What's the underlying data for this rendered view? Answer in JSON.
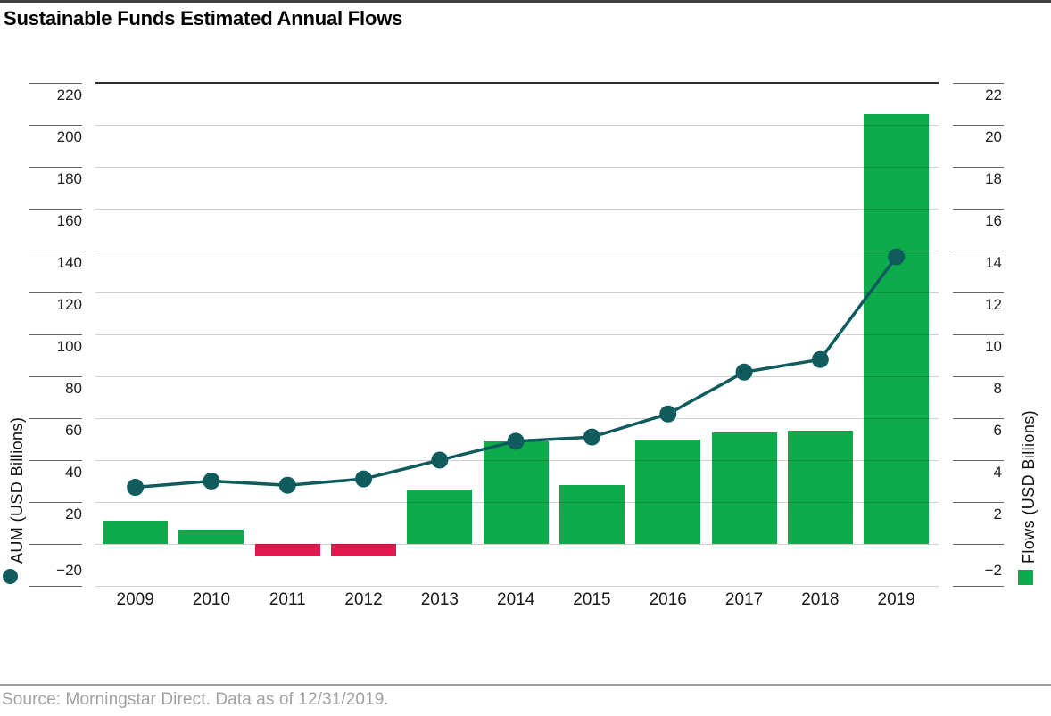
{
  "page": {
    "title": "Sustainable Funds Estimated Annual Flows",
    "source": "Source: Morningstar Direct. Data as of 12/31/2019."
  },
  "chart_data": {
    "type": "bar",
    "title": "Sustainable Funds Estimated Annual Flows",
    "categories": [
      "2009",
      "2010",
      "2011",
      "2012",
      "2013",
      "2014",
      "2015",
      "2016",
      "2017",
      "2018",
      "2019"
    ],
    "series": [
      {
        "name": "Flows (USD Billions)",
        "kind": "bar",
        "axis": "right",
        "values": [
          1.1,
          0.7,
          -0.6,
          -0.6,
          2.6,
          4.9,
          2.8,
          5.0,
          5.3,
          5.4,
          20.5
        ]
      },
      {
        "name": "AUM (USD Billions)",
        "kind": "line",
        "axis": "left",
        "values": [
          27,
          30,
          28,
          31,
          40,
          49,
          51,
          62,
          82,
          88,
          137
        ]
      }
    ],
    "left_axis": {
      "label": "AUM (USD Billions)",
      "range": [
        -20,
        220
      ],
      "tick_step": 20,
      "tick_labels": [
        "220",
        "200",
        "180",
        "160",
        "140",
        "120",
        "100",
        "80",
        "60",
        "40",
        "20",
        "−20"
      ],
      "zero_tick_unlabeled": true,
      "legend_marker": "circle"
    },
    "right_axis": {
      "label": "Flows (USD Billions)",
      "range": [
        -2,
        22
      ],
      "tick_step": 2,
      "tick_labels": [
        "22",
        "20",
        "18",
        "16",
        "14",
        "12",
        "10",
        "8",
        "6",
        "4",
        "2",
        "−2"
      ],
      "zero_tick_unlabeled": true,
      "legend_marker": "square"
    },
    "grid": true,
    "legend_position": "axis-titles",
    "colors": {
      "bar_positive": "#0dab4c",
      "bar_negative": "#e2194f",
      "line": "#0f5b5e",
      "gridline": "rgba(0,0,0,0.185)",
      "plot_top_border": "#2d2d2d"
    }
  }
}
